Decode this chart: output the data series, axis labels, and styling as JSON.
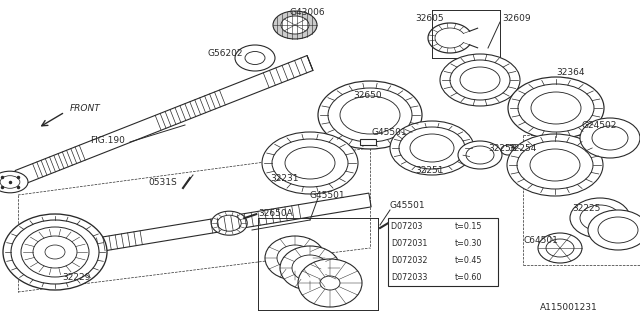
{
  "bg_color": "#ffffff",
  "line_color": "#2a2a2a",
  "fig_width": 6.4,
  "fig_height": 3.2,
  "dpi": 100,
  "diagram_number": "A115001231",
  "table_data": [
    [
      "D07203 ",
      "t=0.15"
    ],
    [
      "D072031",
      "t=0.30"
    ],
    [
      "D072032",
      "t=0.45"
    ],
    [
      "D072033",
      "t=0.60"
    ]
  ]
}
